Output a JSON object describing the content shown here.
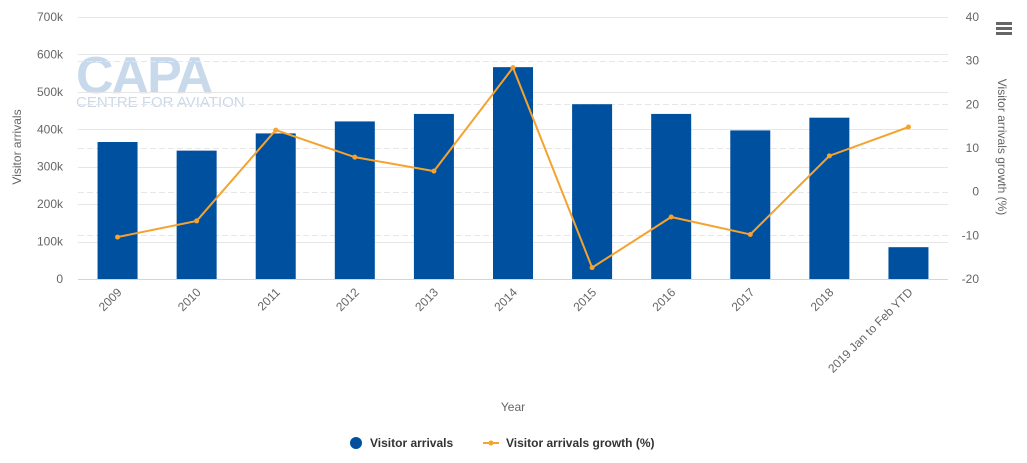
{
  "chart_data": {
    "type": "bar",
    "categories": [
      "2009",
      "2010",
      "2011",
      "2012",
      "2013",
      "2014",
      "2015",
      "2016",
      "2017",
      "2018",
      "2019 Jan to Feb YTD"
    ],
    "series": [
      {
        "name": "Visitor arrivals",
        "type": "bar",
        "axis": "left",
        "color": "#0050a0",
        "values": [
          366000,
          343000,
          389000,
          421000,
          441000,
          566000,
          467000,
          441000,
          397000,
          431000,
          85000
        ]
      },
      {
        "name": "Visitor arrivals growth (%)",
        "type": "line",
        "axis": "right",
        "color": "#f5a22e",
        "values": [
          -10.4,
          -6.7,
          14.1,
          7.9,
          4.7,
          28.4,
          -17.4,
          -5.8,
          -9.8,
          8.2,
          14.8
        ]
      }
    ],
    "xlabel": "Year",
    "ylabel": "Visitor arrivals",
    "y2label": "Visitor arrivals growth (%)",
    "ylim": [
      0,
      700000
    ],
    "y2lim": [
      -20,
      40
    ],
    "yticks": [
      0,
      100000,
      200000,
      300000,
      400000,
      500000,
      600000,
      700000
    ],
    "ytick_labels": [
      "0",
      "100k",
      "200k",
      "300k",
      "400k",
      "500k",
      "600k",
      "700k"
    ],
    "y2ticks": [
      -20,
      -10,
      0,
      10,
      20,
      30,
      40
    ],
    "y2tick_labels": [
      "-20",
      "-10",
      "0",
      "10",
      "20",
      "30",
      "40"
    ],
    "grid": true,
    "legend": "bottom-center"
  },
  "watermark": {
    "big": "CAPA",
    "small": "CENTRE FOR AVIATION"
  },
  "menu_icon": "hamburger-menu-icon"
}
